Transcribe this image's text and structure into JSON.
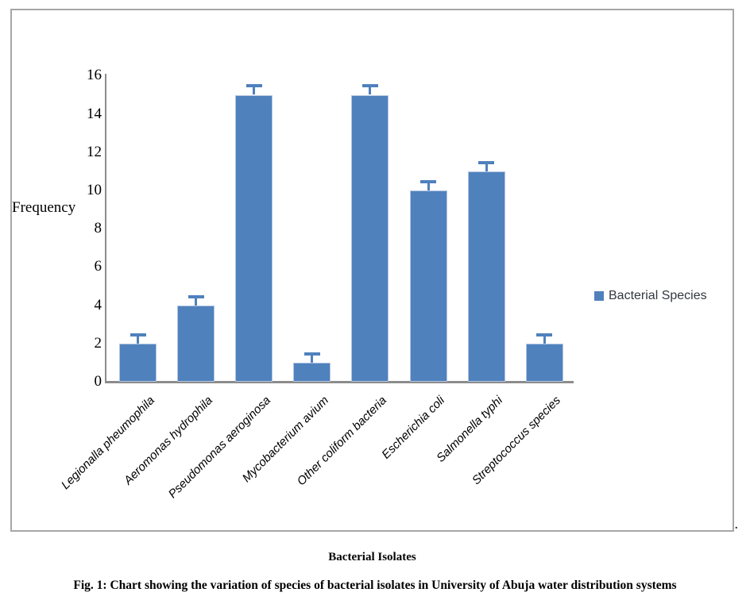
{
  "figure": {
    "ylabel": "Frequency",
    "xlabel": "Bacterial Isolates",
    "caption": "Fig. 1: Chart showing the variation of species of bacterial isolates in University of Abuja water distribution systems",
    "legend": {
      "label": "Bacterial Species",
      "swatch_color": "#4f81bd"
    },
    "stray_mark": "."
  },
  "chart_data": {
    "type": "bar",
    "title": "",
    "categories": [
      "Legionalla pheumophila",
      "Aeromonas hydrophila",
      "Pseudomonas aeroginosa",
      "Mycobacterium avium",
      "Other coliform bacteria",
      "Escherichia coli",
      "Salmonella typhi",
      "Streptococcus species"
    ],
    "series": [
      {
        "name": "Bacterial Species",
        "values": [
          2,
          4,
          15,
          1,
          15,
          10,
          11,
          2
        ],
        "error_plus": [
          0.5,
          0.5,
          0.5,
          0.5,
          0.5,
          0.5,
          0.5,
          0.5
        ]
      }
    ],
    "xlabel": "Bacterial Isolates",
    "ylabel": "Frequency",
    "ylim": [
      0,
      16
    ],
    "yticks": [
      0,
      2,
      4,
      6,
      8,
      10,
      12,
      14,
      16
    ],
    "grid": false,
    "legend_position": "right",
    "colors": {
      "bar": "#4f81bd",
      "bar_border": "#b3c6e1",
      "error": "#4f81bd",
      "axis": "#8c8c8c"
    }
  }
}
